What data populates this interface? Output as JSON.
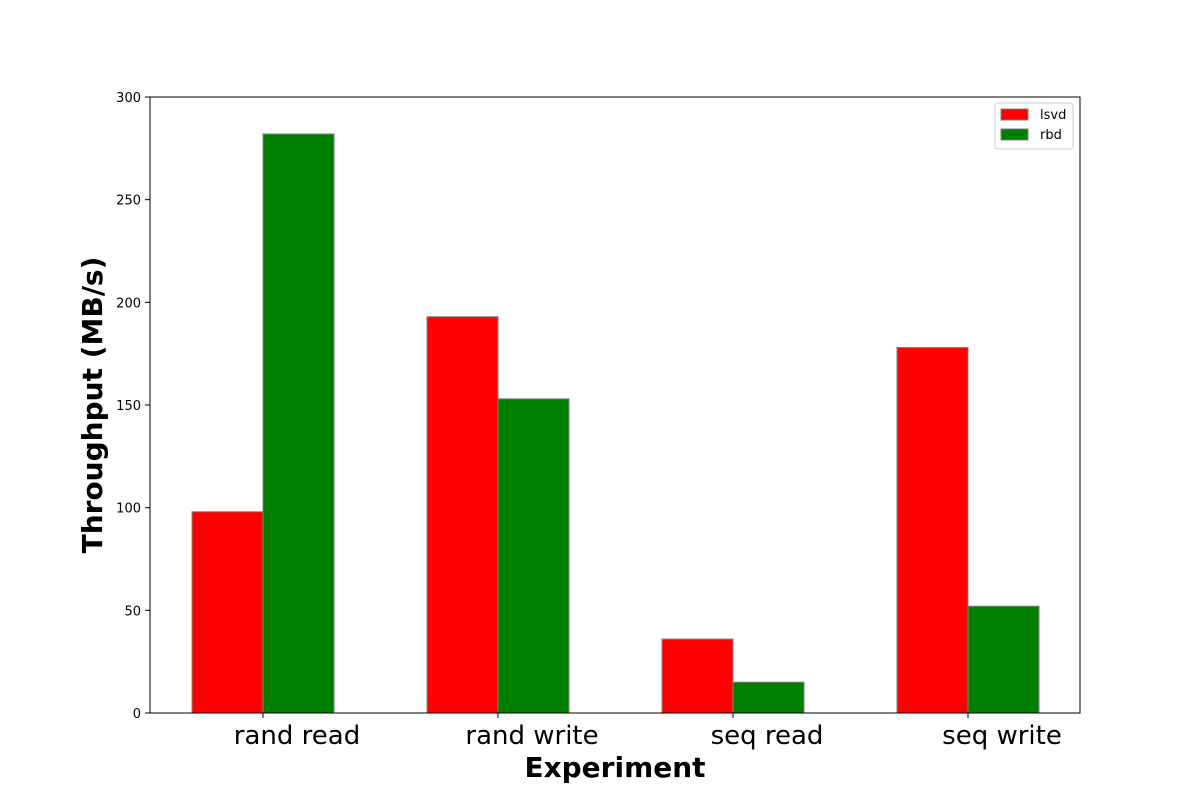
{
  "chart_data": {
    "type": "bar",
    "title": "",
    "xlabel": "Experiment",
    "ylabel": "Throughput (MB/s)",
    "categories": [
      "rand read",
      "rand write",
      "seq read",
      "seq write"
    ],
    "series": [
      {
        "name": "lsvd",
        "color": "#ff0000",
        "values": [
          98,
          193,
          36,
          178
        ]
      },
      {
        "name": "rbd",
        "color": "#008000",
        "values": [
          282,
          153,
          15,
          52
        ]
      }
    ],
    "ylim": [
      0,
      300
    ],
    "yticks": [
      0,
      50,
      100,
      150,
      200,
      250,
      300
    ],
    "grid": false,
    "legend_position": "top-right"
  }
}
